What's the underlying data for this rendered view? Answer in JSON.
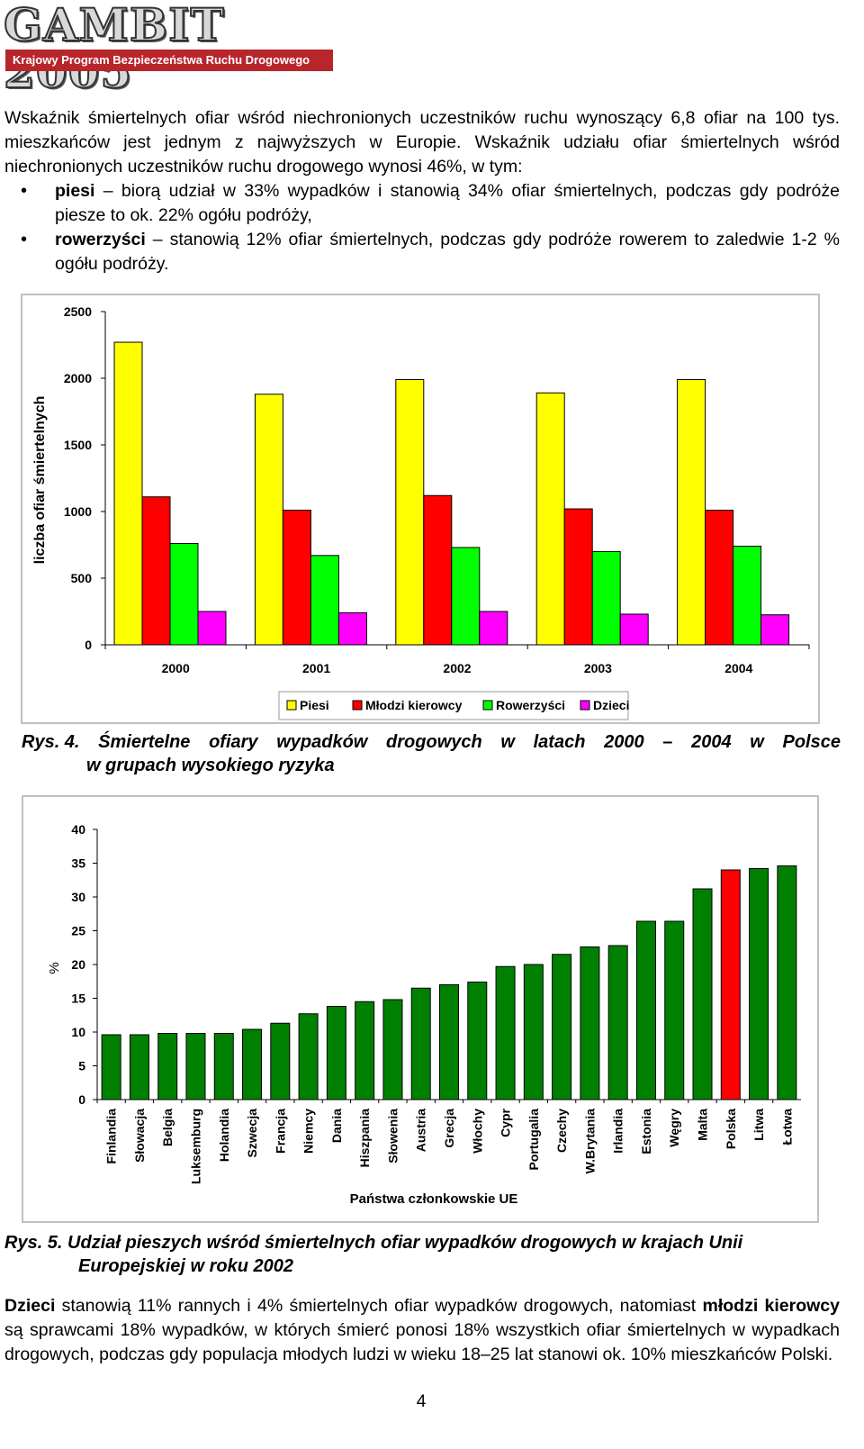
{
  "header": {
    "logo_title": "GAMBIT 2005",
    "logo_subtitle": "Krajowy Program Bezpieczeństwa Ruchu Drogowego"
  },
  "intro": {
    "paragraph": "Wskaźnik śmiertelnych ofiar wśród niechronionych uczestników ruchu wynoszący 6,8 ofiar na 100 tys. mieszkańców jest jednym z najwyższych w Europie. Wskaźnik udziału ofiar śmiertelnych wśród niechronionych uczestników ruchu drogowego wynosi 46%, w tym:",
    "bullets": [
      {
        "bold": "piesi",
        "text": " – biorą udział w 33% wypadków i stanowią 34% ofiar śmiertelnych, podczas gdy podróże piesze to ok. 22% ogółu podróży,"
      },
      {
        "bold": "rowerzyści",
        "text": " – stanowią 12% ofiar śmiertelnych, podczas gdy podróże rowerem to zaledwie 1-2 % ogółu podróży."
      }
    ]
  },
  "figure4": {
    "caption_num": "Rys. 4.",
    "caption_line1_words": [
      "Śmiertelne",
      "ofiary",
      "wypadków",
      "drogowych",
      "w",
      "latach",
      "2000",
      "–",
      "2004",
      "w",
      "Polsce"
    ],
    "caption_line2": "w grupach wysokiego ryzyka"
  },
  "figure5": {
    "caption_num": "Rys. 5.",
    "caption_line1": "Udział pieszych wśród śmiertelnych ofiar wypadków drogowych w krajach Unii",
    "caption_line2": "Europejskiej w roku 2002"
  },
  "outro": {
    "parts": [
      {
        "bold": "Dzieci",
        "text": " stanowią 11% rannych i 4% śmiertelnych ofiar wypadków drogowych, natomiast "
      },
      {
        "bold": "młodzi kierowcy",
        "text": " są sprawcami 18% wypadków, w których śmierć ponosi 18% wszystkich ofiar śmiertelnych w wypadkach drogowych, podczas gdy populacja młodych ludzi w wieku 18–25 lat stanowi ok. 10% mieszkańców Polski."
      }
    ]
  },
  "page_number": "4",
  "chart_data": [
    {
      "type": "bar",
      "title": "",
      "xlabel": "",
      "ylabel": "liczba ofiar śmiertelnych",
      "ylim": [
        0,
        2500
      ],
      "yticks": [
        0,
        500,
        1000,
        1500,
        2000,
        2500
      ],
      "grid": false,
      "legend_position": "bottom",
      "categories": [
        "2000",
        "2001",
        "2002",
        "2003",
        "2004"
      ],
      "series": [
        {
          "name": "Piesi",
          "color": "#ffff00",
          "values": [
            2270,
            1880,
            1990,
            1890,
            1990
          ]
        },
        {
          "name": "Młodzi kierowcy",
          "color": "#ff0000",
          "values": [
            1110,
            1010,
            1120,
            1020,
            1010
          ]
        },
        {
          "name": "Rowerzyści",
          "color": "#00ff00",
          "values": [
            760,
            670,
            730,
            700,
            740
          ]
        },
        {
          "name": "Dzieci",
          "color": "#ff00ff",
          "values": [
            250,
            240,
            250,
            230,
            225
          ]
        }
      ]
    },
    {
      "type": "bar",
      "title": "",
      "xlabel": "Państwa członkowskie UE",
      "ylabel": "%",
      "ylim": [
        0,
        40
      ],
      "yticks": [
        0,
        5,
        10,
        15,
        20,
        25,
        30,
        35,
        40
      ],
      "grid": false,
      "categories": [
        "Finlandia",
        "Słowacja",
        "Belgia",
        "Luksemburg",
        "Holandia",
        "Szwecja",
        "Francja",
        "Niemcy",
        "Dania",
        "Hiszpania",
        "Słowenia",
        "Austria",
        "Grecja",
        "Włochy",
        "Cypr",
        "Portugalia",
        "Czechy",
        "W.Brytania",
        "Irlandia",
        "Estonia",
        "Węgry",
        "Malta",
        "Polska",
        "Litwa",
        "Łotwa"
      ],
      "values": [
        9.6,
        9.6,
        9.8,
        9.8,
        9.8,
        10.4,
        11.3,
        12.7,
        13.8,
        14.5,
        14.8,
        16.5,
        17.0,
        17.4,
        19.7,
        20.0,
        21.5,
        22.6,
        22.8,
        26.4,
        26.4,
        31.2,
        34.0,
        34.2,
        34.6
      ],
      "bar_color": "#008000",
      "highlight": {
        "category": "Polska",
        "color": "#ff0000"
      }
    }
  ]
}
